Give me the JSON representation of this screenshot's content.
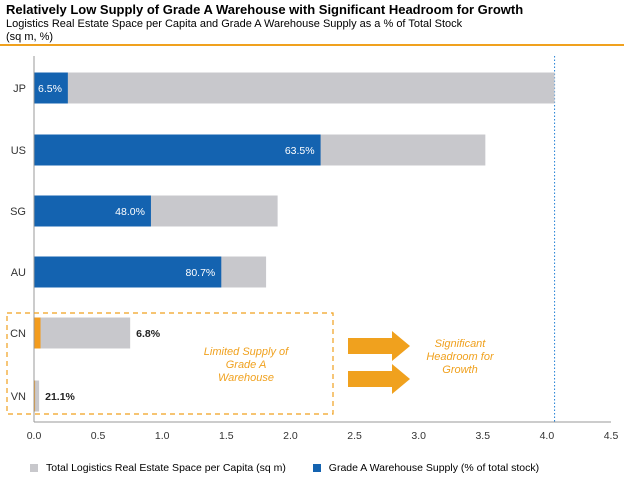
{
  "title": "Relatively Low Supply of Grade A Warehouse with Significant Headroom for Growth",
  "subtitle_line1": "Logistics Real Estate Space per Capita and Grade A Warehouse Supply as a % of Total Stock",
  "subtitle_line2": "(sq m, %)",
  "colors": {
    "total": "#c8c8cc",
    "grade_a": "#1463b0",
    "grade_a_emerging": "#f39c1e",
    "accent": "#f0a11e",
    "ref_line": "#1f7fd4",
    "annotation": "#f0a11e"
  },
  "chart_data": {
    "type": "bar",
    "orientation": "horizontal",
    "categories": [
      "JP",
      "US",
      "SG",
      "AU",
      "CN",
      "VN"
    ],
    "series": [
      {
        "name": "Total Logistics Real Estate Space per Capita (sq m)",
        "values": [
          4.06,
          3.52,
          1.9,
          1.81,
          0.75,
          0.04
        ]
      },
      {
        "name": "Grade A Warehouse Supply (% of total stock)",
        "percent": [
          6.5,
          63.5,
          48.0,
          80.7,
          6.8,
          21.1
        ]
      }
    ],
    "data_labels": [
      "6.5%",
      "63.5%",
      "48.0%",
      "80.7%",
      "6.8%",
      "21.1%"
    ],
    "x_ticks": [
      "0.0",
      "0.5",
      "1.0",
      "1.5",
      "2.0",
      "2.5",
      "3.0",
      "3.5",
      "4.0",
      "4.5"
    ],
    "xlim": [
      0,
      4.5
    ],
    "reference_line_x": 4.06,
    "legend_position": "bottom"
  },
  "annotations": {
    "limited_supply": [
      "Limited Supply of",
      "Grade A",
      "Warehouse"
    ],
    "headroom": [
      "Significant",
      "Headroom for",
      "Growth"
    ]
  }
}
